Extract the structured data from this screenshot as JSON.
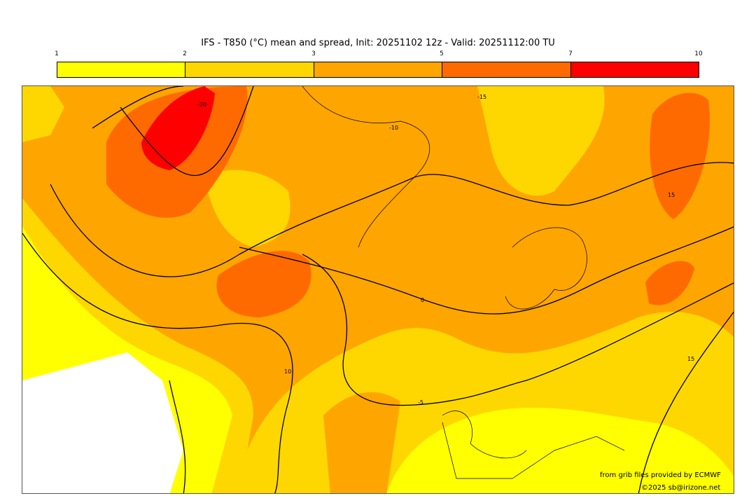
{
  "title": "IFS - T850 (°C) mean and spread, Init: 20251102 12z - Valid: 20251112:00 TU",
  "colorbar": {
    "ticks": [
      "1",
      "2",
      "3",
      "5",
      "7",
      "10"
    ],
    "colors": [
      "#ffff00",
      "#ffd700",
      "#ffa500",
      "#ff6a00",
      "#ff0000"
    ]
  },
  "contour_labels": [
    "-10",
    "15",
    "0",
    "-5",
    "10",
    "-15",
    "15",
    "-20"
  ],
  "credits": {
    "source": "from grib files provided by ECMWF",
    "copyright": "©2025 sb@irizone.net"
  }
}
